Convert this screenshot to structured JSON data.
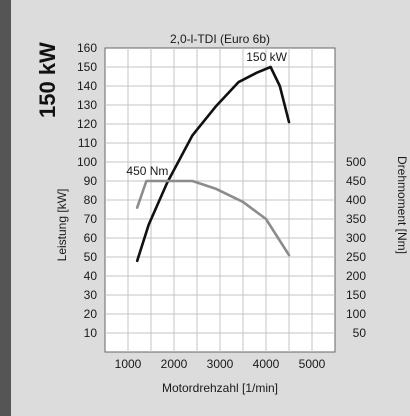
{
  "chart_data": {
    "type": "line",
    "title": "2,0-l-TDI (Euro 6b)",
    "side_title": "150 kW",
    "xlabel": "Motordrehzahl [1/min]",
    "ylabel_left": "Leistung [kW]",
    "ylabel_right": "Drehmoment [Nm]",
    "xlim": [
      500,
      5500
    ],
    "ylim_left": [
      0,
      160
    ],
    "ylim_right": [
      0,
      800
    ],
    "x_ticks": [
      1000,
      2000,
      3000,
      4000,
      5000
    ],
    "y_ticks_left": [
      10,
      20,
      30,
      40,
      50,
      60,
      70,
      80,
      90,
      100,
      110,
      120,
      130,
      140,
      150,
      160
    ],
    "y_ticks_right": [
      50,
      100,
      150,
      200,
      250,
      300,
      350,
      400,
      450,
      500
    ],
    "grid": true,
    "series": [
      {
        "name": "150 kW",
        "axis": "left",
        "color": "#111111",
        "x": [
          1200,
          1450,
          1850,
          2400,
          2900,
          3400,
          3800,
          4100,
          4300,
          4500
        ],
        "y": [
          48,
          67,
          89,
          114,
          129,
          142,
          147,
          150,
          140,
          121
        ]
      },
      {
        "name": "450 Nm",
        "axis": "right",
        "color": "#8c8c8c",
        "x": [
          1200,
          1400,
          1750,
          2400,
          2900,
          3500,
          4000,
          4500
        ],
        "y": [
          380,
          450,
          450,
          450,
          430,
          395,
          350,
          255
        ]
      }
    ]
  }
}
